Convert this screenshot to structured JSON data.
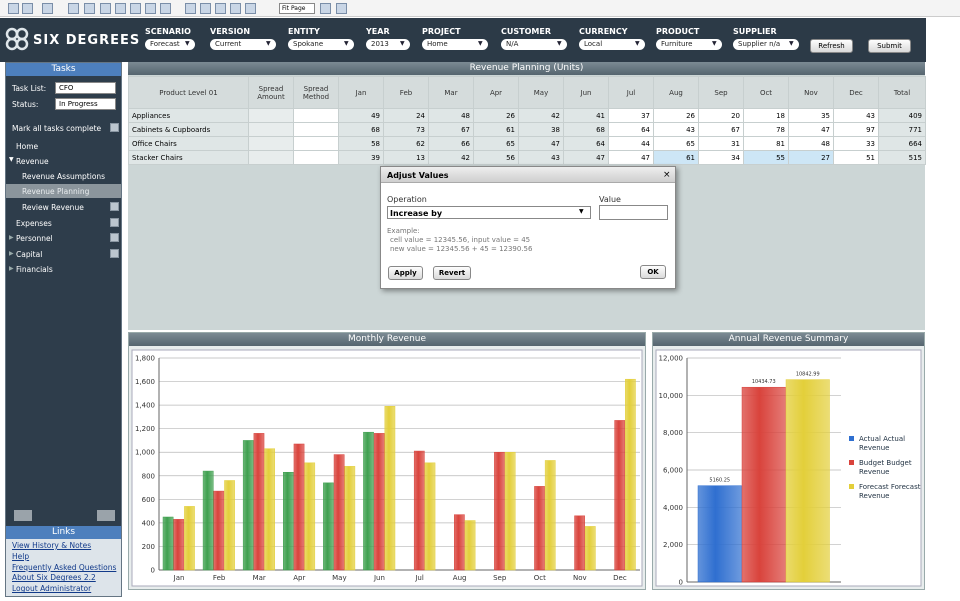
{
  "toolbar": {
    "zoom": "Fit Page"
  },
  "brand": "SIX DEGREES",
  "filters": [
    {
      "label": "SCENARIO",
      "value": "Forecast"
    },
    {
      "label": "VERSION",
      "value": "Current"
    },
    {
      "label": "ENTITY",
      "value": "Spokane"
    },
    {
      "label": "YEAR",
      "value": "2013"
    },
    {
      "label": "PROJECT",
      "value": "Home"
    },
    {
      "label": "CUSTOMER",
      "value": "N/A"
    },
    {
      "label": "CURRENCY",
      "value": "Local"
    },
    {
      "label": "PRODUCT",
      "value": "Furniture"
    },
    {
      "label": "SUPPLIER",
      "value": "Supplier n/a"
    }
  ],
  "buttons": {
    "refresh": "Refresh",
    "submit": "Submit"
  },
  "sidebar": {
    "title": "Tasks",
    "task_list_label": "Task List:",
    "task_list_value": "CFO",
    "status_label": "Status:",
    "status_value": "In Progress",
    "mark_all": "Mark all tasks complete",
    "nav": [
      "Home",
      "Revenue",
      "Revenue Assumptions",
      "Revenue Planning",
      "Review Revenue",
      "Expenses",
      "Personnel",
      "Capital",
      "Financials"
    ],
    "links_title": "Links",
    "links": [
      "View History & Notes",
      "Help",
      "Frequently Asked Questions",
      "About Six Degrees 2.2",
      "Logout Administrator"
    ]
  },
  "table": {
    "title": "Revenue Planning (Units)",
    "headers": [
      "Product Level 01",
      "Spread Amount",
      "Spread Method",
      "Jan",
      "Feb",
      "Mar",
      "Apr",
      "May",
      "Jun",
      "Jul",
      "Aug",
      "Sep",
      "Oct",
      "Nov",
      "Dec",
      "Total"
    ],
    "rows": [
      {
        "product": "Appliances",
        "months": [
          49,
          24,
          48,
          26,
          42,
          41,
          37,
          26,
          20,
          18,
          35,
          43
        ],
        "total": 409
      },
      {
        "product": "Cabinets & Cupboards",
        "months": [
          68,
          73,
          67,
          61,
          38,
          68,
          64,
          43,
          67,
          78,
          47,
          97
        ],
        "total": 771
      },
      {
        "product": "Office Chairs",
        "months": [
          58,
          62,
          66,
          65,
          47,
          64,
          44,
          65,
          31,
          81,
          48,
          33
        ],
        "total": 664
      },
      {
        "product": "Stacker Chairs",
        "months": [
          39,
          13,
          42,
          56,
          43,
          47,
          47,
          61,
          34,
          55,
          27,
          51
        ],
        "total": 515
      }
    ]
  },
  "dialog": {
    "title": "Adjust Values",
    "operation_label": "Operation",
    "value_label": "Value",
    "operation": "Increase by",
    "example_title": "Example:",
    "example_lines": [
      "cell value = 12345.56, input value = 45",
      "new value = 12345.56 + 45 = 12390.56"
    ],
    "apply": "Apply",
    "revert": "Revert",
    "ok": "OK"
  },
  "chart_data": [
    {
      "type": "bar",
      "title": "Monthly Revenue",
      "categories": [
        "Jan",
        "Feb",
        "Mar",
        "Apr",
        "May",
        "Jun",
        "Jul",
        "Aug",
        "Sep",
        "Oct",
        "Nov",
        "Dec"
      ],
      "series": [
        {
          "color": "#3fa04f",
          "values": [
            450,
            840,
            1100,
            830,
            740,
            1170,
            null,
            null,
            null,
            null,
            null,
            null
          ]
        },
        {
          "color": "#d9433c",
          "values": [
            430,
            670,
            1160,
            1070,
            980,
            1160,
            1010,
            470,
            1000,
            710,
            460,
            1270
          ]
        },
        {
          "color": "#e3cf3a",
          "values": [
            540,
            760,
            1030,
            910,
            880,
            1390,
            910,
            420,
            1000,
            930,
            370,
            1620
          ]
        }
      ],
      "ylim": [
        0,
        1800
      ],
      "yticks": [
        0,
        200,
        400,
        600,
        800,
        {
          "value": 1000,
          "label": "1,000"
        },
        {
          "value": 1200,
          "label": "1,200"
        },
        {
          "value": 1400,
          "label": "1,400"
        },
        {
          "value": 1600,
          "label": "1,600"
        },
        {
          "value": 1800,
          "label": "1,800"
        }
      ],
      "grid": true
    },
    {
      "type": "bar",
      "title": "Annual Revenue Summary",
      "series": [
        {
          "name": "Actual Actual Revenue",
          "color": "#2f6fd0",
          "values": [
            5160.25
          ]
        },
        {
          "name": "Budget Budget Revenue",
          "color": "#d9433c",
          "values": [
            10434.73
          ]
        },
        {
          "name": "Forecast Forecast Revenue",
          "color": "#e3cf3a",
          "values": [
            10842.99
          ]
        }
      ],
      "ylim": [
        0,
        12000
      ],
      "yticks": [
        0,
        {
          "value": 2000,
          "label": "2,000"
        },
        {
          "value": 4000,
          "label": "4,000"
        },
        {
          "value": 6000,
          "label": "6,000"
        },
        {
          "value": 8000,
          "label": "8,000"
        },
        {
          "value": 10000,
          "label": "10,000"
        },
        {
          "value": 12000,
          "label": "12,000"
        }
      ],
      "grid": true,
      "legend": "right"
    }
  ]
}
